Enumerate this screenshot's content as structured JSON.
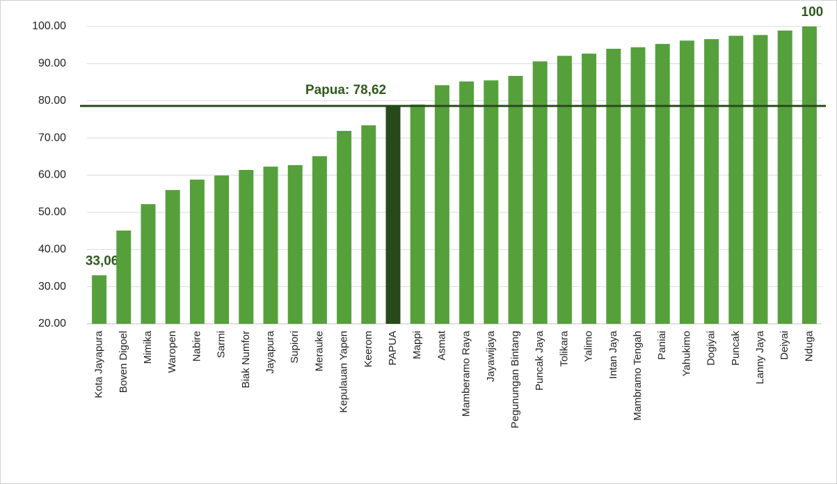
{
  "chart_data": {
    "type": "bar",
    "categories": [
      "Kota Jayapura",
      "Boven Digoel",
      "Mimika",
      "Waropen",
      "Nabire",
      "Sarmi",
      "Biak Numfor",
      "Jayapura",
      "Supiori",
      "Merauke",
      "Kepulauan Yapen",
      "Keerom",
      "PAPUA",
      "Mappi",
      "Asmat",
      "Mamberamo Raya",
      "Jayawijaya",
      "Pegunungan Bintang",
      "Puncak Jaya",
      "Tolikara",
      "Yalimo",
      "Intan Jaya",
      "Mambramo Tengah",
      "Paniai",
      "Yahukimo",
      "Dogiyai",
      "Puncak",
      "Lanny Jaya",
      "Deiyai",
      "Nduga"
    ],
    "values": [
      33.06,
      45.1,
      52.2,
      56.0,
      58.8,
      59.9,
      61.4,
      62.3,
      62.7,
      65.1,
      71.9,
      73.4,
      78.62,
      79.0,
      84.2,
      85.2,
      85.5,
      86.7,
      90.6,
      92.1,
      92.7,
      94.0,
      94.4,
      95.3,
      96.2,
      96.6,
      97.5,
      97.7,
      98.9,
      100
    ],
    "value_labels": [
      "33,06",
      null,
      null,
      null,
      null,
      null,
      null,
      null,
      null,
      null,
      null,
      null,
      null,
      null,
      null,
      null,
      null,
      null,
      null,
      null,
      null,
      null,
      null,
      null,
      null,
      null,
      null,
      null,
      null,
      "100"
    ],
    "colors": [
      "#56a03c",
      "#56a03c",
      "#56a03c",
      "#56a03c",
      "#56a03c",
      "#56a03c",
      "#56a03c",
      "#56a03c",
      "#56a03c",
      "#56a03c",
      "#56a03c",
      "#56a03c",
      "#274a1b",
      "#56a03c",
      "#56a03c",
      "#56a03c",
      "#56a03c",
      "#56a03c",
      "#56a03c",
      "#56a03c",
      "#56a03c",
      "#56a03c",
      "#56a03c",
      "#56a03c",
      "#56a03c",
      "#56a03c",
      "#56a03c",
      "#56a03c",
      "#56a03c",
      "#56a03c"
    ],
    "reference_line": {
      "value": 78.62,
      "label": "Papua: 78,62",
      "color": "#274a1b"
    },
    "ylim": [
      20,
      100
    ],
    "yticks": [
      {
        "value": 20,
        "label": "20.00"
      },
      {
        "value": 30,
        "label": "30.00"
      },
      {
        "value": 40,
        "label": "40.00"
      },
      {
        "value": 50,
        "label": "50.00"
      },
      {
        "value": 60,
        "label": "60.00"
      },
      {
        "value": 70,
        "label": "70.00"
      },
      {
        "value": 80,
        "label": "80.00"
      },
      {
        "value": 90,
        "label": "90.00"
      },
      {
        "value": 100,
        "label": "100.00"
      }
    ],
    "grid": true
  }
}
